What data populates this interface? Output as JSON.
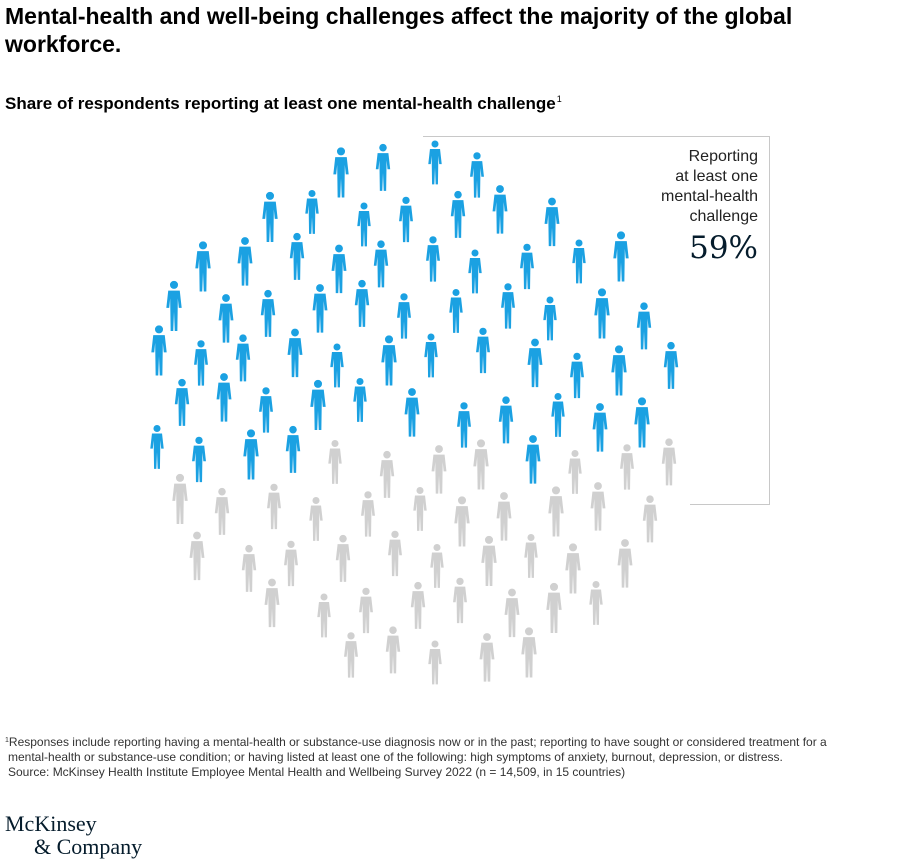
{
  "title": "Mental-health and well-being challenges affect the majority of the global workforce.",
  "subtitle": "Share of respondents reporting at least one mental-health challenge",
  "subtitle_note_marker": "1",
  "colors": {
    "highlight": "#1ba1e2",
    "rest": "#d0d0d0",
    "value_text": "#051c2c"
  },
  "chart_data": {
    "type": "pictogram",
    "highlighted_share_percent": 59,
    "highlight_label": "Reporting at least one mental-health challenge",
    "highlight_value_label": "59%"
  },
  "callout": {
    "label": "Reporting\nat least one\nmental-health\nchallenge",
    "value": "59%"
  },
  "footnote": {
    "marker": "1",
    "line1": "Responses include reporting having a mental-health or substance-use diagnosis now or in the past; reporting to have sought or considered treatment for a",
    "line2": "mental-health or substance-use condition; or having listed at least one of the following: high symptoms of anxiety, burnout, depression, or distress.",
    "source": "Source: McKinsey Health Institute Employee Mental Health and Wellbeing Survey 2022 (n = 14,509, in 15 countries)"
  },
  "logo": {
    "line1": "McKinsey",
    "line2": "& Company"
  }
}
